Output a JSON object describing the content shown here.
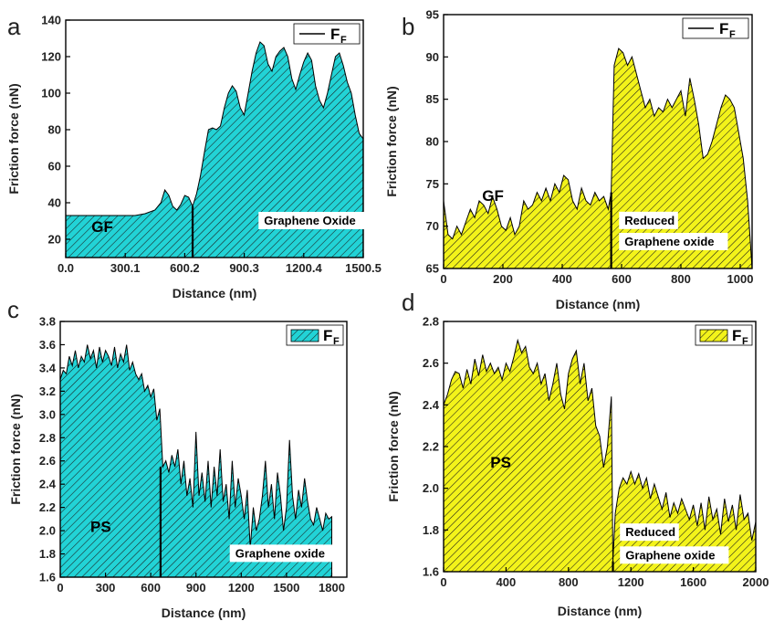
{
  "colors": {
    "cyan": "#22d3d6",
    "yellow": "#f3f31a",
    "hatch": "#1a1a1a",
    "axis": "#000000"
  },
  "chart_data": [
    {
      "panel": "a",
      "type": "area",
      "xlabel": "Distance (nm)",
      "ylabel": "Friction force (nN)",
      "xlim": [
        0,
        1500.5
      ],
      "ylim": [
        10,
        140
      ],
      "xticks": [
        0,
        300.1,
        600.2,
        900.3,
        1200.4,
        1500.5
      ],
      "xtick_labels": [
        "0.0",
        "300.1",
        "600.2",
        "900.3",
        "1200.4",
        "1500.5"
      ],
      "yticks": [
        20,
        40,
        60,
        80,
        100,
        120,
        140
      ],
      "fill": "#22d3d6",
      "hatch": true,
      "legend": {
        "label": "F",
        "subscript": "F",
        "position": "top-right",
        "style": "line"
      },
      "divider_x": 640,
      "annotations": [
        {
          "text": "GF",
          "x": 130,
          "y": 24
        },
        {
          "text": "Graphene Oxide",
          "x": 1000,
          "y": 28,
          "boxed": true
        }
      ],
      "series": [
        {
          "x": [
            0,
            50,
            100,
            150,
            200,
            250,
            300,
            350,
            400,
            450,
            480,
            500,
            520,
            540,
            560,
            580,
            600,
            620,
            640,
            660,
            680,
            700,
            720,
            740,
            760,
            780,
            800,
            820,
            840,
            860,
            880,
            900,
            920,
            940,
            960,
            980,
            1000,
            1020,
            1040,
            1060,
            1080,
            1100,
            1120,
            1140,
            1160,
            1180,
            1200,
            1220,
            1240,
            1260,
            1280,
            1300,
            1320,
            1340,
            1360,
            1380,
            1400,
            1420,
            1440,
            1460,
            1480,
            1500
          ],
          "y": [
            33,
            33,
            33,
            33,
            33,
            33,
            33,
            33,
            34,
            36,
            40,
            47,
            44,
            38,
            36,
            39,
            44,
            43,
            38,
            45,
            55,
            68,
            80,
            81,
            80,
            82,
            92,
            100,
            104,
            101,
            92,
            88,
            100,
            112,
            122,
            128,
            126,
            116,
            112,
            120,
            123,
            125,
            120,
            108,
            102,
            110,
            117,
            122,
            118,
            104,
            96,
            92,
            100,
            110,
            120,
            122,
            115,
            106,
            100,
            88,
            78,
            75
          ]
        }
      ]
    },
    {
      "panel": "b",
      "type": "area",
      "xlabel": "Distance (nm)",
      "ylabel": "Friction force (nN)",
      "xlim": [
        0,
        1040
      ],
      "ylim": [
        65,
        95
      ],
      "xticks": [
        0,
        200,
        400,
        600,
        800,
        1000
      ],
      "xtick_labels": [
        "0",
        "200",
        "400",
        "600",
        "800",
        "1000"
      ],
      "yticks": [
        65,
        70,
        75,
        80,
        85,
        90,
        95
      ],
      "fill": "#f3f31a",
      "hatch": true,
      "legend": {
        "label": "F",
        "subscript": "F",
        "position": "top-right",
        "style": "line"
      },
      "divider_x": 565,
      "annotations": [
        {
          "text": "GF",
          "x": 130,
          "y": 73
        },
        {
          "text": "Reduced",
          "x": 610,
          "y": 70.2,
          "boxed": true
        },
        {
          "text": "Graphene oxide",
          "x": 610,
          "y": 67.7,
          "boxed": true
        }
      ],
      "series": [
        {
          "x": [
            0,
            15,
            30,
            45,
            60,
            75,
            90,
            105,
            120,
            135,
            150,
            165,
            180,
            195,
            210,
            225,
            240,
            255,
            270,
            285,
            300,
            315,
            330,
            345,
            360,
            375,
            390,
            405,
            420,
            435,
            450,
            465,
            480,
            495,
            510,
            525,
            540,
            555,
            565,
            575,
            590,
            605,
            620,
            635,
            650,
            665,
            680,
            695,
            710,
            725,
            740,
            755,
            770,
            785,
            800,
            815,
            830,
            845,
            860,
            875,
            890,
            905,
            920,
            935,
            950,
            965,
            980,
            995,
            1010,
            1025,
            1040
          ],
          "y": [
            73,
            69,
            68.5,
            70,
            69,
            70.5,
            72,
            71,
            73,
            72.5,
            71.5,
            73.5,
            72,
            70,
            69.5,
            71,
            69,
            70,
            73,
            72,
            72.5,
            74,
            73,
            74.5,
            73,
            75,
            74,
            76,
            75.5,
            73,
            72,
            74.5,
            73,
            72.5,
            74,
            73,
            73.5,
            72,
            74,
            89,
            91,
            90.5,
            89,
            90,
            88,
            86,
            84,
            85,
            83,
            84,
            83.5,
            85,
            84,
            85,
            86,
            83,
            87.5,
            85,
            82,
            78,
            78.5,
            80,
            82,
            84,
            85.5,
            85,
            84,
            81,
            78,
            73,
            65
          ]
        }
      ]
    },
    {
      "panel": "c",
      "type": "area",
      "xlabel": "Distance (nm)",
      "ylabel": "Friction force (nN)",
      "xlim": [
        0,
        1900
      ],
      "ylim": [
        1.6,
        3.8
      ],
      "xticks": [
        0,
        300,
        600,
        900,
        1200,
        1500,
        1800
      ],
      "xtick_labels": [
        "0",
        "300",
        "600",
        "900",
        "1200",
        "1500",
        "1800"
      ],
      "yticks": [
        1.6,
        1.8,
        2.0,
        2.2,
        2.4,
        2.6,
        2.8,
        3.0,
        3.2,
        3.4,
        3.6,
        3.8
      ],
      "ytick_labels": [
        "1.6",
        "1.8",
        "2.0",
        "2.2",
        "2.4",
        "2.6",
        "2.8",
        "3.0",
        "3.2",
        "3.4",
        "3.6",
        "3.8"
      ],
      "fill": "#22d3d6",
      "hatch": true,
      "legend": {
        "label": "F",
        "subscript": "F",
        "position": "top-right",
        "style": "box"
      },
      "divider_x": 665,
      "annotations": [
        {
          "text": "PS",
          "x": 200,
          "y": 1.99
        },
        {
          "text": "Graphene oxide",
          "x": 1160,
          "y": 1.77,
          "boxed": true
        }
      ],
      "series": [
        {
          "x": [
            0,
            20,
            40,
            60,
            80,
            100,
            120,
            140,
            160,
            180,
            200,
            220,
            240,
            260,
            280,
            300,
            320,
            340,
            360,
            380,
            400,
            420,
            440,
            460,
            480,
            500,
            520,
            540,
            560,
            580,
            600,
            620,
            640,
            660,
            680,
            700,
            720,
            740,
            760,
            780,
            800,
            820,
            840,
            860,
            880,
            900,
            920,
            940,
            960,
            980,
            1000,
            1020,
            1040,
            1060,
            1080,
            1100,
            1120,
            1140,
            1160,
            1180,
            1200,
            1220,
            1240,
            1260,
            1280,
            1300,
            1320,
            1340,
            1360,
            1380,
            1400,
            1420,
            1440,
            1460,
            1480,
            1500,
            1520,
            1540,
            1560,
            1580,
            1600,
            1620,
            1640,
            1660,
            1680,
            1700,
            1720,
            1740,
            1760,
            1780,
            1800
          ],
          "y": [
            3.3,
            3.38,
            3.35,
            3.5,
            3.42,
            3.55,
            3.4,
            3.5,
            3.45,
            3.6,
            3.48,
            3.55,
            3.4,
            3.58,
            3.45,
            3.55,
            3.5,
            3.42,
            3.58,
            3.4,
            3.52,
            3.45,
            3.6,
            3.38,
            3.45,
            3.35,
            3.3,
            3.35,
            3.2,
            3.25,
            3.15,
            3.22,
            2.95,
            3.05,
            2.55,
            2.6,
            2.5,
            2.65,
            2.55,
            2.7,
            2.4,
            2.6,
            2.3,
            2.45,
            2.2,
            2.85,
            2.3,
            2.5,
            2.25,
            2.6,
            2.2,
            2.55,
            2.3,
            2.7,
            2.25,
            2.4,
            2.1,
            2.6,
            2.2,
            2.45,
            2.3,
            2.1,
            2.35,
            1.85,
            2.2,
            2.0,
            2.1,
            2.3,
            2.6,
            2.2,
            2.4,
            2.1,
            2.5,
            2.3,
            2.0,
            2.2,
            2.78,
            2.3,
            2.1,
            2.35,
            2.2,
            2.45,
            2.25,
            2.1,
            2.05,
            2.2,
            2.1,
            2.0,
            2.15,
            2.1,
            2.12
          ]
        }
      ]
    },
    {
      "panel": "d",
      "type": "area",
      "xlabel": "Distance (nm)",
      "ylabel": "Friction force (nN)",
      "xlim": [
        0,
        2000
      ],
      "ylim": [
        1.6,
        2.8
      ],
      "xticks": [
        0,
        400,
        800,
        1200,
        1600,
        2000
      ],
      "xtick_labels": [
        "0",
        "400",
        "800",
        "1200",
        "1600",
        "2000"
      ],
      "yticks": [
        1.6,
        1.8,
        2.0,
        2.2,
        2.4,
        2.6,
        2.8
      ],
      "ytick_labels": [
        "1.6",
        "1.8",
        "2.0",
        "2.2",
        "2.4",
        "2.6",
        "2.8"
      ],
      "fill": "#f3f31a",
      "hatch": true,
      "legend": {
        "label": "F",
        "subscript": "F",
        "position": "top-right",
        "style": "box"
      },
      "divider_x": 1085,
      "annotations": [
        {
          "text": "PS",
          "x": 300,
          "y": 2.1
        },
        {
          "text": "Reduced",
          "x": 1165,
          "y": 1.77,
          "boxed": true
        },
        {
          "text": "Graphene oxide",
          "x": 1165,
          "y": 1.66,
          "boxed": true
        }
      ],
      "series": [
        {
          "x": [
            0,
            25,
            50,
            75,
            100,
            125,
            150,
            175,
            200,
            225,
            250,
            275,
            300,
            325,
            350,
            375,
            400,
            425,
            450,
            475,
            500,
            525,
            550,
            575,
            600,
            625,
            650,
            675,
            700,
            725,
            750,
            775,
            800,
            825,
            850,
            875,
            900,
            925,
            950,
            975,
            1000,
            1025,
            1050,
            1075,
            1085,
            1100,
            1125,
            1150,
            1175,
            1200,
            1225,
            1250,
            1275,
            1300,
            1325,
            1350,
            1375,
            1400,
            1425,
            1450,
            1475,
            1500,
            1525,
            1550,
            1575,
            1600,
            1625,
            1650,
            1675,
            1700,
            1725,
            1750,
            1775,
            1800,
            1825,
            1850,
            1875,
            1900,
            1925,
            1950,
            1975,
            2000
          ],
          "y": [
            2.4,
            2.45,
            2.52,
            2.56,
            2.55,
            2.48,
            2.57,
            2.5,
            2.62,
            2.54,
            2.64,
            2.56,
            2.6,
            2.55,
            2.58,
            2.52,
            2.6,
            2.56,
            2.63,
            2.71,
            2.65,
            2.68,
            2.58,
            2.55,
            2.6,
            2.5,
            2.55,
            2.42,
            2.5,
            2.6,
            2.45,
            2.38,
            2.55,
            2.62,
            2.66,
            2.5,
            2.6,
            2.42,
            2.48,
            2.3,
            2.25,
            2.1,
            2.2,
            2.44,
            1.65,
            1.88,
            2.0,
            2.05,
            2.02,
            2.08,
            2.02,
            2.07,
            2.0,
            2.05,
            1.95,
            2.02,
            1.96,
            1.9,
            1.98,
            1.86,
            1.93,
            1.88,
            1.95,
            1.9,
            1.85,
            1.92,
            1.82,
            1.93,
            1.8,
            1.96,
            1.85,
            1.9,
            1.78,
            1.95,
            1.84,
            1.92,
            1.8,
            1.97,
            1.85,
            1.88,
            1.75,
            1.84
          ]
        }
      ]
    }
  ]
}
